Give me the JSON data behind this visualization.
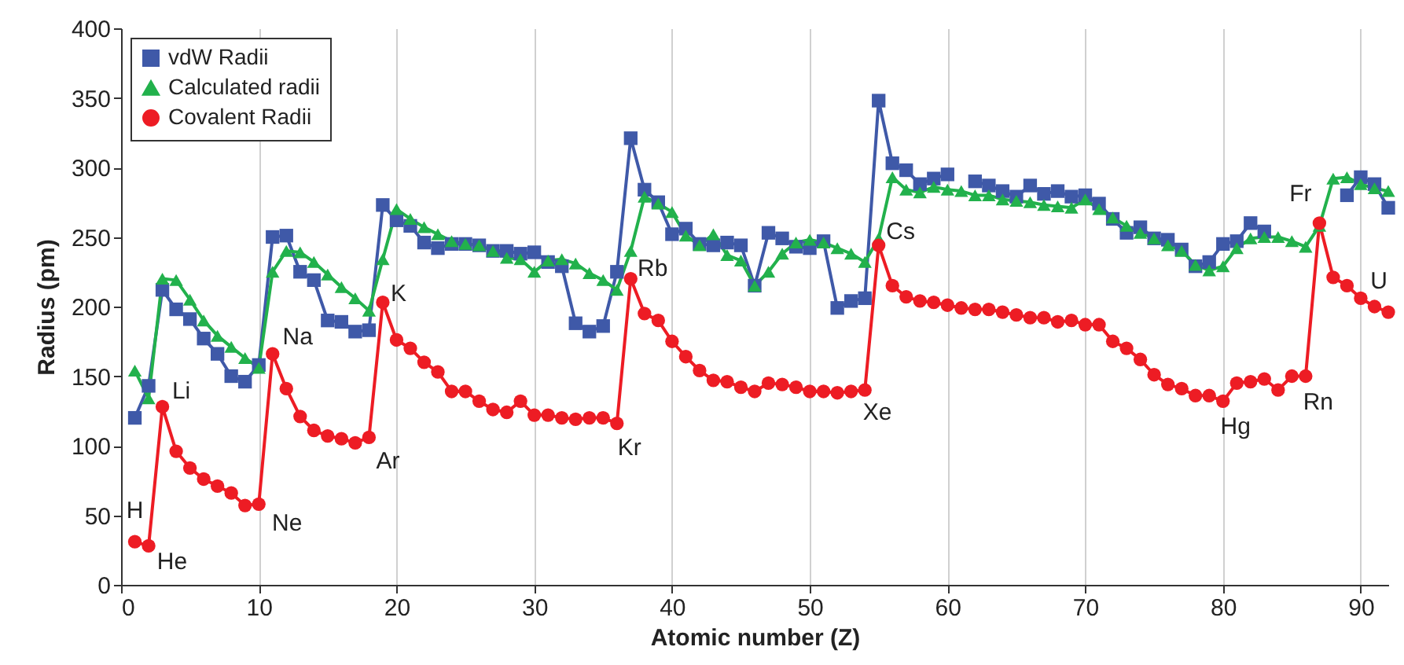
{
  "chart_data": {
    "type": "line",
    "xlabel": "Atomic number (Z)",
    "ylabel": "Radius (pm)",
    "x": [
      1,
      2,
      3,
      4,
      5,
      6,
      7,
      8,
      9,
      10,
      11,
      12,
      13,
      14,
      15,
      16,
      17,
      18,
      19,
      20,
      21,
      22,
      23,
      24,
      25,
      26,
      27,
      28,
      29,
      30,
      31,
      32,
      33,
      34,
      35,
      36,
      37,
      38,
      39,
      40,
      41,
      42,
      43,
      44,
      45,
      46,
      47,
      48,
      49,
      50,
      51,
      52,
      53,
      54,
      55,
      56,
      57,
      58,
      59,
      60,
      61,
      62,
      63,
      64,
      65,
      66,
      67,
      68,
      69,
      70,
      71,
      72,
      73,
      74,
      75,
      76,
      77,
      78,
      79,
      80,
      81,
      82,
      83,
      84,
      85,
      86,
      87,
      88,
      89,
      90,
      91,
      92
    ],
    "series": [
      {
        "name": "vdW Radii",
        "color": "#3f59a8",
        "marker": "square",
        "values": [
          120,
          143,
          212,
          198,
          191,
          177,
          166,
          150,
          146,
          158,
          250,
          251,
          225,
          219,
          190,
          189,
          182,
          183,
          273,
          262,
          258,
          246,
          242,
          245,
          245,
          244,
          240,
          240,
          238,
          239,
          232,
          229,
          188,
          182,
          186,
          225,
          321,
          284,
          275,
          252,
          256,
          245,
          244,
          246,
          244,
          215,
          253,
          249,
          243,
          242,
          247,
          199,
          204,
          206,
          348,
          303,
          298,
          288,
          292,
          295,
          null,
          290,
          287,
          283,
          279,
          287,
          281,
          283,
          279,
          280,
          274,
          263,
          253,
          257,
          249,
          248,
          241,
          229,
          232,
          245,
          247,
          260,
          254,
          null,
          null,
          null,
          null,
          null,
          280,
          293,
          288,
          271
        ]
      },
      {
        "name": "Calculated radii",
        "color": "#22b14c",
        "marker": "triangle",
        "values": [
          154,
          134,
          220,
          219,
          205,
          190,
          179,
          171,
          163,
          156,
          225,
          240,
          239,
          232,
          223,
          214,
          206,
          197,
          234,
          270,
          263,
          257,
          252,
          247,
          245,
          244,
          240,
          235,
          234,
          225,
          233,
          234,
          231,
          224,
          219,
          212,
          240,
          279,
          274,
          268,
          251,
          244,
          252,
          237,
          233,
          215,
          225,
          238,
          246,
          248,
          246,
          242,
          238,
          232,
          249,
          293,
          284,
          282,
          286,
          284,
          283,
          280,
          280,
          277,
          276,
          275,
          273,
          272,
          271,
          277,
          270,
          264,
          258,
          253,
          249,
          244,
          240,
          230,
          226,
          229,
          242,
          249,
          250,
          250,
          247,
          243,
          258,
          292,
          293,
          288,
          285,
          283
        ]
      },
      {
        "name": "Covalent Radii",
        "color": "#ed1c24",
        "marker": "circle",
        "values": [
          31,
          28,
          128,
          96,
          84,
          76,
          71,
          66,
          57,
          58,
          166,
          141,
          121,
          111,
          107,
          105,
          102,
          106,
          203,
          176,
          170,
          160,
          153,
          139,
          139,
          132,
          126,
          124,
          132,
          122,
          122,
          120,
          119,
          120,
          120,
          116,
          220,
          195,
          190,
          175,
          164,
          154,
          147,
          146,
          142,
          139,
          145,
          144,
          142,
          139,
          139,
          138,
          139,
          140,
          244,
          215,
          207,
          204,
          203,
          201,
          199,
          198,
          198,
          196,
          194,
          192,
          192,
          189,
          190,
          187,
          187,
          175,
          170,
          162,
          151,
          144,
          141,
          136,
          136,
          132,
          145,
          146,
          148,
          140,
          150,
          150,
          260,
          221,
          215,
          206,
          200,
          196
        ]
      }
    ],
    "xlim": [
      0,
      92
    ],
    "xticks": [
      0,
      10,
      20,
      30,
      40,
      50,
      60,
      70,
      80,
      90
    ],
    "ylim": [
      0,
      400
    ],
    "yticks": [
      0,
      50,
      100,
      150,
      200,
      250,
      300,
      350,
      400
    ],
    "grid": "x",
    "legend": "top left",
    "annotations": [
      {
        "text": "H",
        "x": 1,
        "y": 31
      },
      {
        "text": "He",
        "x": 2,
        "y": 28
      },
      {
        "text": "Li",
        "x": 3,
        "y": 128
      },
      {
        "text": "Ne",
        "x": 10,
        "y": 58
      },
      {
        "text": "Na",
        "x": 11,
        "y": 166
      },
      {
        "text": "Ar",
        "x": 18,
        "y": 106
      },
      {
        "text": "K",
        "x": 19,
        "y": 203
      },
      {
        "text": "Kr",
        "x": 36,
        "y": 116
      },
      {
        "text": "Rb",
        "x": 37,
        "y": 220
      },
      {
        "text": "Xe",
        "x": 54,
        "y": 140
      },
      {
        "text": "Cs",
        "x": 55,
        "y": 244
      },
      {
        "text": "Hg",
        "x": 80,
        "y": 132
      },
      {
        "text": "Rn",
        "x": 86,
        "y": 150
      },
      {
        "text": "Fr",
        "x": 87,
        "y": 260
      },
      {
        "text": "U",
        "x": 92,
        "y": 196
      }
    ]
  }
}
